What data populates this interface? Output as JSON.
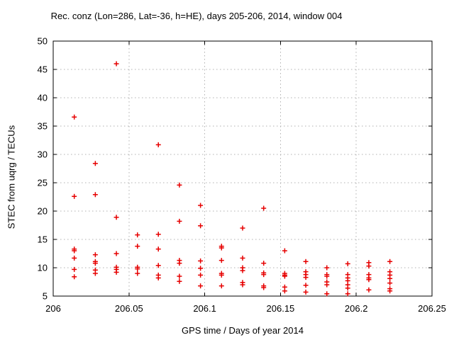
{
  "chart_data": {
    "type": "scatter",
    "title": "Rec. conz (Lon=286, Lat=-36, h=HE), days 205-206, 2014, window 004",
    "xlabel": "GPS time / Days of year 2014",
    "ylabel": "STEC from uqrg / TECUs",
    "xlim": [
      206,
      206.25
    ],
    "ylim": [
      5,
      50
    ],
    "xticks": [
      206,
      206.05,
      206.1,
      206.15,
      206.2,
      206.25
    ],
    "xtick_labels": [
      "206",
      "206.05",
      "206.1",
      "206.15",
      "206.2",
      "206.25"
    ],
    "yticks": [
      5,
      10,
      15,
      20,
      25,
      30,
      35,
      40,
      45,
      50
    ],
    "grid": true,
    "legend": "none",
    "grid_color": "#b0b0b0",
    "border_color": "#000000",
    "marker": {
      "shape": "plus",
      "color": "#e60000",
      "size": 3.5,
      "stroke_width": 1.5
    },
    "series": [
      {
        "name": "STEC",
        "points": [
          [
            206.0139,
            36.6
          ],
          [
            206.0139,
            22.6
          ],
          [
            206.0139,
            13.3
          ],
          [
            206.0139,
            13.0
          ],
          [
            206.0139,
            11.7
          ],
          [
            206.0139,
            9.7
          ],
          [
            206.0139,
            8.4
          ],
          [
            206.0278,
            28.4
          ],
          [
            206.0278,
            22.9
          ],
          [
            206.0278,
            12.3
          ],
          [
            206.0278,
            11.1
          ],
          [
            206.0278,
            10.8
          ],
          [
            206.0278,
            9.6
          ],
          [
            206.0278,
            9.0
          ],
          [
            206.0417,
            46.0
          ],
          [
            206.0417,
            18.9
          ],
          [
            206.0417,
            12.5
          ],
          [
            206.0417,
            10.1
          ],
          [
            206.0417,
            9.7
          ],
          [
            206.0417,
            9.2
          ],
          [
            206.0556,
            15.8
          ],
          [
            206.0556,
            13.8
          ],
          [
            206.0556,
            10.1
          ],
          [
            206.0556,
            9.8
          ],
          [
            206.0556,
            9.0
          ],
          [
            206.0694,
            31.7
          ],
          [
            206.0694,
            15.9
          ],
          [
            206.0694,
            13.3
          ],
          [
            206.0694,
            10.4
          ],
          [
            206.0694,
            8.7
          ],
          [
            206.0694,
            8.2
          ],
          [
            206.0833,
            24.6
          ],
          [
            206.0833,
            18.2
          ],
          [
            206.0833,
            11.3
          ],
          [
            206.0833,
            10.8
          ],
          [
            206.0833,
            8.5
          ],
          [
            206.0833,
            7.6
          ],
          [
            206.0972,
            21.0
          ],
          [
            206.0972,
            17.4
          ],
          [
            206.0972,
            11.2
          ],
          [
            206.0972,
            9.9
          ],
          [
            206.0972,
            8.7
          ],
          [
            206.0972,
            6.8
          ],
          [
            206.1111,
            13.8
          ],
          [
            206.1111,
            13.5
          ],
          [
            206.1111,
            11.3
          ],
          [
            206.1111,
            9.0
          ],
          [
            206.1111,
            8.7
          ],
          [
            206.1111,
            6.8
          ],
          [
            206.125,
            17.0
          ],
          [
            206.125,
            11.7
          ],
          [
            206.125,
            10.0
          ],
          [
            206.125,
            9.5
          ],
          [
            206.125,
            7.4
          ],
          [
            206.125,
            7.0
          ],
          [
            206.1389,
            20.5
          ],
          [
            206.1389,
            10.8
          ],
          [
            206.1389,
            9.1
          ],
          [
            206.1389,
            8.8
          ],
          [
            206.1389,
            6.8
          ],
          [
            206.1389,
            6.5
          ],
          [
            206.1528,
            13.0
          ],
          [
            206.1528,
            9.0
          ],
          [
            206.1528,
            8.7
          ],
          [
            206.1528,
            8.5
          ],
          [
            206.1528,
            6.6
          ],
          [
            206.1528,
            5.9
          ],
          [
            206.1667,
            11.1
          ],
          [
            206.1667,
            9.3
          ],
          [
            206.1667,
            8.8
          ],
          [
            206.1667,
            8.3
          ],
          [
            206.1667,
            6.9
          ],
          [
            206.1667,
            5.7
          ],
          [
            206.1806,
            10.0
          ],
          [
            206.1806,
            8.8
          ],
          [
            206.1806,
            8.5
          ],
          [
            206.1806,
            7.5
          ],
          [
            206.1806,
            7.0
          ],
          [
            206.1806,
            5.4
          ],
          [
            206.1944,
            10.7
          ],
          [
            206.1944,
            8.8
          ],
          [
            206.1944,
            8.2
          ],
          [
            206.1944,
            7.7
          ],
          [
            206.1944,
            7.0
          ],
          [
            206.1944,
            6.4
          ],
          [
            206.1944,
            5.4
          ],
          [
            206.2083,
            10.9
          ],
          [
            206.2083,
            10.3
          ],
          [
            206.2083,
            8.8
          ],
          [
            206.2083,
            8.2
          ],
          [
            206.2083,
            7.9
          ],
          [
            206.2083,
            6.1
          ],
          [
            206.2222,
            11.1
          ],
          [
            206.2222,
            9.3
          ],
          [
            206.2222,
            8.7
          ],
          [
            206.2222,
            8.1
          ],
          [
            206.2222,
            7.3
          ],
          [
            206.2222,
            6.3
          ],
          [
            206.2222,
            5.9
          ]
        ]
      }
    ]
  }
}
